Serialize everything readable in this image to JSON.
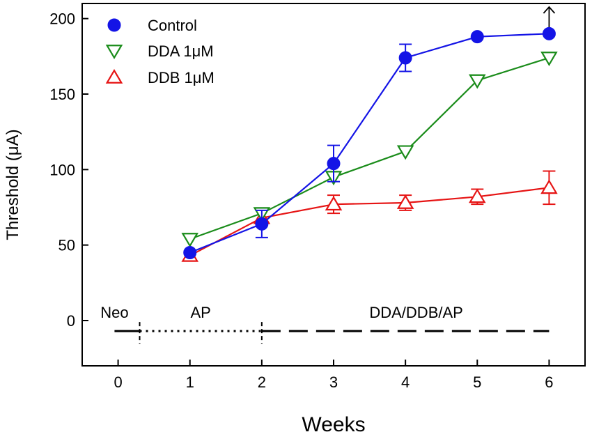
{
  "chart_data": {
    "type": "line",
    "title": "",
    "xlabel": "Weeks",
    "ylabel": "Threshold (μA)",
    "xlim": [
      -0.5,
      6.5
    ],
    "ylim": [
      -30,
      210
    ],
    "xticks": [
      "0",
      "1",
      "2",
      "3",
      "4",
      "5",
      "6"
    ],
    "yticks": [
      "0",
      "50",
      "100",
      "150",
      "200"
    ],
    "grid": false,
    "legend_position": "top-left",
    "series": [
      {
        "name": "Control",
        "marker": "filled-circle",
        "color": "#1414e6",
        "x": [
          1,
          2,
          3,
          4,
          5,
          6
        ],
        "y": [
          45,
          64,
          104,
          174,
          188,
          190
        ],
        "err": [
          0,
          9,
          12,
          9,
          0,
          0
        ]
      },
      {
        "name": "DDA 1μM",
        "marker": "open-triangle-down",
        "color": "#1a8c1a",
        "x": [
          1,
          2,
          3,
          4,
          5,
          6
        ],
        "y": [
          54,
          71,
          95,
          112,
          159,
          174
        ],
        "err": [
          0,
          0,
          0,
          0,
          0,
          0
        ]
      },
      {
        "name": "DDB 1μM",
        "marker": "open-triangle-up",
        "color": "#e61414",
        "x": [
          1,
          2,
          3,
          4,
          5,
          6
        ],
        "y": [
          43,
          68,
          77,
          78,
          82,
          88
        ],
        "err": [
          0,
          0,
          6,
          5,
          5,
          11
        ]
      }
    ],
    "annotations": {
      "arrow_at": {
        "x": 6,
        "direction": "up"
      },
      "phases": [
        {
          "label": "Neo",
          "from": -0.05,
          "to": 0.3,
          "line": "solid"
        },
        {
          "label": "AP",
          "from": 0.3,
          "to": 2,
          "line": "dotted"
        },
        {
          "label": "DDA/DDB/AP",
          "from": 2,
          "to": 6,
          "line": "dashed"
        }
      ],
      "phase_line_y": -7
    }
  }
}
